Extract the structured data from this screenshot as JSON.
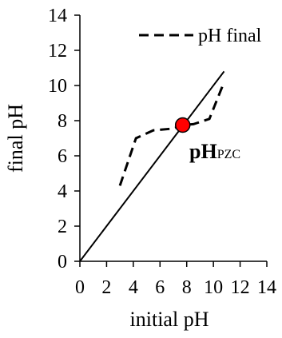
{
  "chart_data": {
    "type": "line",
    "xlabel": "initial pH",
    "ylabel": "final pH",
    "xlim": [
      0,
      14
    ],
    "ylim": [
      0,
      14
    ],
    "x_ticks": [
      0,
      2,
      4,
      6,
      8,
      10,
      12,
      14
    ],
    "y_ticks": [
      0,
      2,
      4,
      6,
      8,
      10,
      12,
      14
    ],
    "grid": false,
    "legend_position": "top-right",
    "series": [
      {
        "name": "pH final",
        "style": "dashed",
        "color": "#000000",
        "x": [
          3.0,
          4.2,
          5.5,
          7.0,
          7.7,
          8.5,
          9.7,
          10.7
        ],
        "y": [
          4.3,
          7.0,
          7.45,
          7.55,
          7.75,
          7.8,
          8.1,
          10.0
        ]
      },
      {
        "name": "",
        "style": "solid",
        "color": "#000000",
        "x": [
          0,
          10.8
        ],
        "y": [
          0,
          10.8
        ]
      }
    ],
    "annotations": [
      {
        "type": "point",
        "x": 7.7,
        "y": 7.75,
        "color": "#ff0000",
        "label_main": "pH",
        "label_sub": "PZC"
      }
    ]
  }
}
